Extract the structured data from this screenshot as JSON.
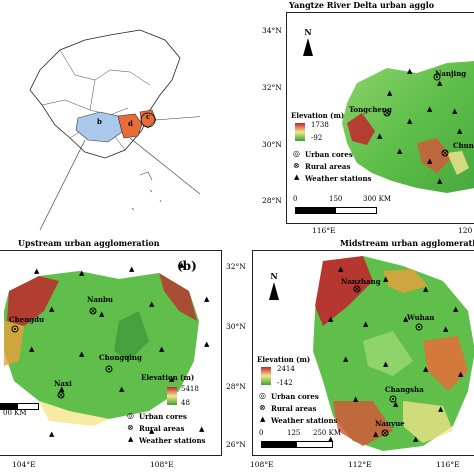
{
  "panel_c": {
    "title": "Yangtze River Delta urban agglo",
    "lat_labels": [
      "34°N",
      "32°N",
      "30°N",
      "28°N"
    ],
    "lon_labels": [
      "116°E",
      "120"
    ],
    "cities": [
      "Nanjing",
      "Tongcheng",
      "Chun"
    ],
    "legend": {
      "elev_title": "Elevation (m)",
      "elev_max": "1738",
      "elev_min": "-92",
      "urban": "Urban cores",
      "rural": "Rural areas",
      "stations": "Weather stations"
    },
    "scale": [
      "0",
      "150",
      "300 KM"
    ],
    "north": "N"
  },
  "panel_b": {
    "title": "Upstream urban agglomeration",
    "tag": "(b)",
    "lon_labels": [
      "104°E",
      "108°E"
    ],
    "cities": [
      "Nanbu",
      "Chengdu",
      "Chongqing",
      "Naxi"
    ],
    "legend": {
      "elev_title": "Elevation (m)",
      "elev_max": "5418",
      "elev_min": "48",
      "urban": "Urban cores",
      "rural": "Rural areas",
      "stations": "Weather stations"
    },
    "scale": [
      "00 KM"
    ]
  },
  "panel_d": {
    "title": "Midstream urban agglomeration",
    "lat_labels": [
      "32°N",
      "30°N",
      "28°N",
      "26°N"
    ],
    "lon_labels": [
      "108°E",
      "112°E",
      "116°E"
    ],
    "cities": [
      "Nanzhang",
      "Wuhan",
      "Changsha",
      "Nanyue"
    ],
    "legend": {
      "elev_title": "Elevation (m)",
      "elev_max": "2414",
      "elev_min": "-142",
      "urban": "Urban cores",
      "rural": "Rural areas",
      "stations": "Weather stations"
    },
    "scale": [
      "0",
      "125",
      "250 KM"
    ],
    "north": "N"
  },
  "overview": {
    "region_labels": [
      "b",
      "c",
      "d"
    ]
  },
  "colors": {
    "elev_high": "#c0272d",
    "elev_mid": "#f6e58d",
    "elev_low": "#3aa335",
    "basin_green": "#4caf50",
    "overview_b": "#a9c8ea",
    "overview_c": "#e86c3a"
  }
}
